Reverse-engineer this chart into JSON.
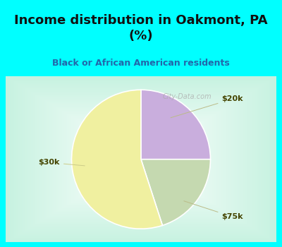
{
  "title": "Income distribution in Oakmont, PA\n(%)",
  "subtitle": "Black or African American residents",
  "slices": [
    {
      "label": "$20k",
      "value": 25,
      "color": "#c9aedd"
    },
    {
      "label": "$75k",
      "value": 20,
      "color": "#c5d9b0"
    },
    {
      "label": "$30k",
      "value": 55,
      "color": "#f0f0a0"
    }
  ],
  "title_color": "#111111",
  "subtitle_color": "#2266aa",
  "bg_color": "#00ffff",
  "label_color": "#444400",
  "label_fontsize": 8,
  "watermark": "City-Data.com",
  "title_fontsize": 13,
  "subtitle_fontsize": 9
}
